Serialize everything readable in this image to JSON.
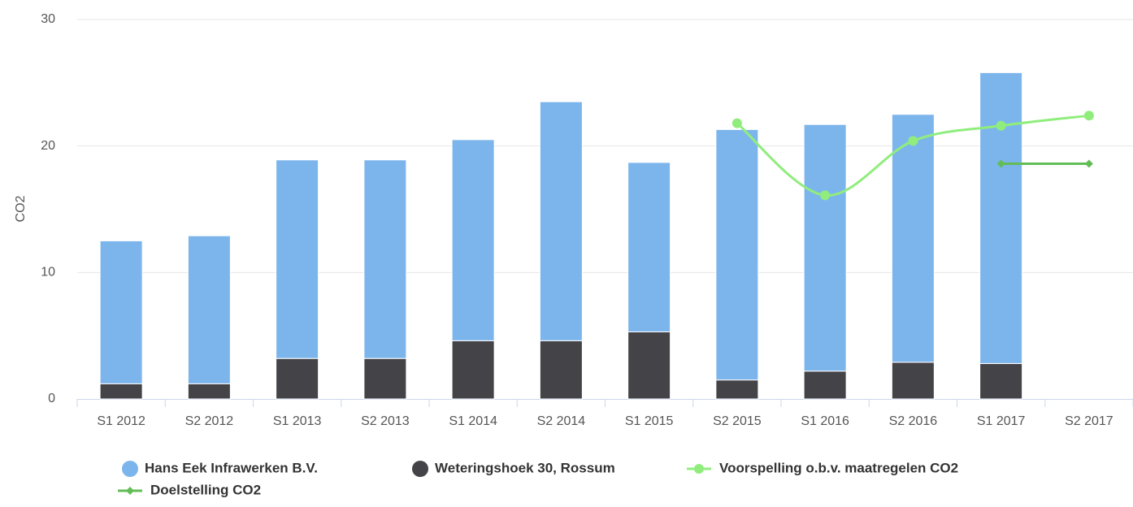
{
  "chart_data": {
    "type": "bar",
    "stacked": true,
    "grid": true,
    "ylabel": "CO2",
    "categories": [
      "S1 2012",
      "S2 2012",
      "S1 2013",
      "S2 2013",
      "S1 2014",
      "S2 2014",
      "S1 2015",
      "S2 2015",
      "S1 2016",
      "S2 2016",
      "S1 2017",
      "S2 2017"
    ],
    "ylim": [
      0,
      30
    ],
    "yticks": [
      0,
      10,
      20,
      30
    ],
    "series": [
      {
        "name": "Hans Eek Infrawerken B.V.",
        "type": "bar",
        "color": "#7cb5ec",
        "values": [
          11.3,
          11.7,
          15.7,
          15.7,
          15.9,
          18.9,
          13.4,
          19.8,
          19.5,
          19.6,
          23.0,
          null
        ]
      },
      {
        "name": "Weteringshoek 30, Rossum",
        "type": "bar",
        "color": "#434348",
        "values": [
          1.2,
          1.2,
          3.2,
          3.2,
          4.6,
          4.6,
          5.3,
          1.5,
          2.2,
          2.9,
          2.8,
          null
        ]
      },
      {
        "name": "Voorspelling o.b.v. maatregelen CO2",
        "type": "line",
        "marker": "circle",
        "color": "#90ed7d",
        "values": [
          null,
          null,
          null,
          null,
          null,
          null,
          null,
          21.8,
          16.1,
          20.4,
          21.6,
          22.4
        ]
      },
      {
        "name": "Doelstelling CO2",
        "type": "line",
        "marker": "diamond",
        "color": "#62bd56",
        "values": [
          null,
          null,
          null,
          null,
          null,
          null,
          null,
          null,
          null,
          null,
          18.6,
          18.6
        ]
      }
    ]
  }
}
